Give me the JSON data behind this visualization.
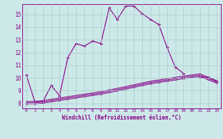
{
  "xlabel": "Windchill (Refroidissement éolien,°C)",
  "bg_color": "#cce8e8",
  "grid_color": "#aacccc",
  "line_color": "#880088",
  "xlim": [
    -0.5,
    23.5
  ],
  "ylim": [
    7.6,
    15.8
  ],
  "xticks": [
    0,
    1,
    2,
    3,
    4,
    5,
    6,
    7,
    8,
    9,
    10,
    11,
    12,
    13,
    14,
    15,
    16,
    17,
    18,
    19,
    20,
    21,
    22,
    23
  ],
  "yticks": [
    8,
    9,
    10,
    11,
    12,
    13,
    14,
    15
  ],
  "series1_x": [
    0,
    1,
    2,
    3,
    4,
    5,
    6,
    7,
    8,
    9,
    10,
    11,
    12,
    13,
    14,
    15,
    16,
    17,
    18,
    19,
    21,
    22,
    23
  ],
  "series1_y": [
    10.2,
    8.15,
    8.15,
    9.4,
    8.6,
    11.6,
    12.7,
    12.5,
    12.9,
    12.7,
    15.5,
    14.6,
    15.65,
    15.65,
    15.05,
    14.6,
    14.2,
    12.4,
    10.85,
    10.35,
    10.05,
    10.05,
    9.75
  ],
  "series2_x": [
    0,
    1,
    2,
    3,
    4,
    5,
    6,
    7,
    8,
    9,
    10,
    11,
    12,
    13,
    14,
    15,
    16,
    17,
    18,
    19,
    20,
    21,
    22,
    23
  ],
  "series2_y": [
    8.15,
    8.15,
    8.22,
    8.32,
    8.42,
    8.52,
    8.62,
    8.72,
    8.82,
    8.92,
    9.05,
    9.18,
    9.32,
    9.46,
    9.6,
    9.74,
    9.84,
    9.94,
    10.04,
    10.14,
    10.24,
    10.32,
    10.05,
    9.78
  ],
  "series3_x": [
    0,
    1,
    2,
    3,
    4,
    5,
    6,
    7,
    8,
    9,
    10,
    11,
    12,
    13,
    14,
    15,
    16,
    17,
    18,
    19,
    20,
    21,
    22,
    23
  ],
  "series3_y": [
    8.05,
    8.05,
    8.12,
    8.22,
    8.32,
    8.42,
    8.52,
    8.62,
    8.72,
    8.82,
    8.95,
    9.08,
    9.22,
    9.36,
    9.5,
    9.64,
    9.74,
    9.84,
    9.94,
    10.04,
    10.14,
    10.22,
    9.95,
    9.68
  ],
  "series4_x": [
    0,
    1,
    2,
    3,
    4,
    5,
    6,
    7,
    8,
    9,
    10,
    11,
    12,
    13,
    14,
    15,
    16,
    17,
    18,
    19,
    20,
    21,
    22,
    23
  ],
  "series4_y": [
    7.95,
    7.95,
    8.02,
    8.12,
    8.22,
    8.32,
    8.42,
    8.52,
    8.62,
    8.72,
    8.85,
    8.98,
    9.12,
    9.26,
    9.4,
    9.54,
    9.64,
    9.74,
    9.84,
    9.94,
    10.04,
    10.12,
    9.85,
    9.58
  ]
}
